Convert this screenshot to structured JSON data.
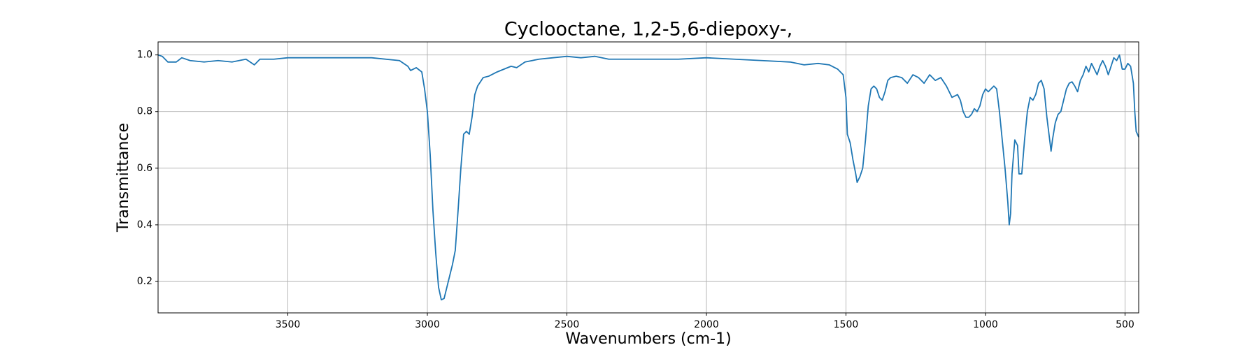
{
  "chart_data": {
    "type": "line",
    "title": "Cyclooctane, 1,2-5,6-diepoxy-,",
    "xlabel": "Wavenumbers (cm-1)",
    "ylabel": "Transmittance",
    "color": "#1f77b4",
    "grid": true,
    "xlim": [
      3965,
      451
    ],
    "ylim": [
      0.089,
      1.046
    ],
    "xticks": [
      3500,
      3000,
      2500,
      2000,
      1500,
      1000,
      500
    ],
    "yticks": [
      0.2,
      0.4,
      0.6,
      0.8,
      {
        "value": 1,
        "label": "1.0"
      }
    ],
    "x": [
      3965,
      3950,
      3930,
      3900,
      3880,
      3850,
      3800,
      3750,
      3700,
      3650,
      3620,
      3600,
      3550,
      3500,
      3400,
      3300,
      3200,
      3100,
      3070,
      3060,
      3040,
      3020,
      3010,
      3000,
      2990,
      2980,
      2970,
      2960,
      2950,
      2940,
      2930,
      2920,
      2910,
      2900,
      2890,
      2880,
      2870,
      2860,
      2850,
      2840,
      2830,
      2820,
      2800,
      2780,
      2750,
      2700,
      2680,
      2650,
      2600,
      2550,
      2500,
      2450,
      2400,
      2350,
      2300,
      2200,
      2100,
      2000,
      1900,
      1800,
      1700,
      1650,
      1600,
      1560,
      1530,
      1510,
      1500,
      1495,
      1485,
      1475,
      1465,
      1460,
      1450,
      1440,
      1430,
      1420,
      1410,
      1400,
      1390,
      1380,
      1370,
      1360,
      1350,
      1340,
      1320,
      1300,
      1280,
      1260,
      1240,
      1220,
      1200,
      1180,
      1160,
      1140,
      1120,
      1100,
      1090,
      1080,
      1070,
      1060,
      1050,
      1040,
      1030,
      1020,
      1010,
      1000,
      990,
      980,
      970,
      960,
      950,
      940,
      930,
      920,
      915,
      910,
      905,
      895,
      885,
      880,
      870,
      860,
      850,
      840,
      830,
      820,
      810,
      800,
      790,
      780,
      770,
      765,
      760,
      750,
      740,
      730,
      720,
      710,
      700,
      690,
      680,
      670,
      660,
      650,
      640,
      630,
      620,
      600,
      590,
      580,
      570,
      560,
      550,
      540,
      530,
      520,
      510,
      500,
      490,
      480,
      470,
      465,
      460,
      451
    ],
    "values": [
      1.0,
      0.995,
      0.975,
      0.975,
      0.99,
      0.98,
      0.975,
      0.98,
      0.975,
      0.985,
      0.965,
      0.985,
      0.985,
      0.99,
      0.99,
      0.99,
      0.99,
      0.98,
      0.96,
      0.945,
      0.955,
      0.94,
      0.88,
      0.8,
      0.65,
      0.45,
      0.3,
      0.18,
      0.135,
      0.14,
      0.18,
      0.22,
      0.26,
      0.31,
      0.45,
      0.6,
      0.72,
      0.73,
      0.72,
      0.78,
      0.86,
      0.89,
      0.92,
      0.925,
      0.94,
      0.96,
      0.955,
      0.975,
      0.985,
      0.99,
      0.995,
      0.99,
      0.995,
      0.985,
      0.985,
      0.985,
      0.985,
      0.99,
      0.985,
      0.98,
      0.975,
      0.965,
      0.97,
      0.965,
      0.95,
      0.93,
      0.85,
      0.72,
      0.69,
      0.63,
      0.58,
      0.55,
      0.57,
      0.6,
      0.7,
      0.82,
      0.88,
      0.89,
      0.88,
      0.85,
      0.84,
      0.87,
      0.91,
      0.92,
      0.925,
      0.92,
      0.9,
      0.93,
      0.92,
      0.9,
      0.93,
      0.91,
      0.92,
      0.89,
      0.85,
      0.86,
      0.84,
      0.8,
      0.78,
      0.78,
      0.79,
      0.81,
      0.8,
      0.82,
      0.86,
      0.88,
      0.87,
      0.88,
      0.89,
      0.88,
      0.8,
      0.7,
      0.6,
      0.48,
      0.4,
      0.44,
      0.58,
      0.7,
      0.68,
      0.58,
      0.58,
      0.7,
      0.8,
      0.85,
      0.84,
      0.86,
      0.9,
      0.91,
      0.88,
      0.78,
      0.7,
      0.66,
      0.7,
      0.76,
      0.79,
      0.8,
      0.84,
      0.88,
      0.9,
      0.905,
      0.89,
      0.87,
      0.91,
      0.93,
      0.96,
      0.94,
      0.97,
      0.93,
      0.96,
      0.98,
      0.96,
      0.93,
      0.96,
      0.99,
      0.98,
      1.0,
      0.95,
      0.95,
      0.97,
      0.96,
      0.9,
      0.8,
      0.73,
      0.71
    ]
  }
}
